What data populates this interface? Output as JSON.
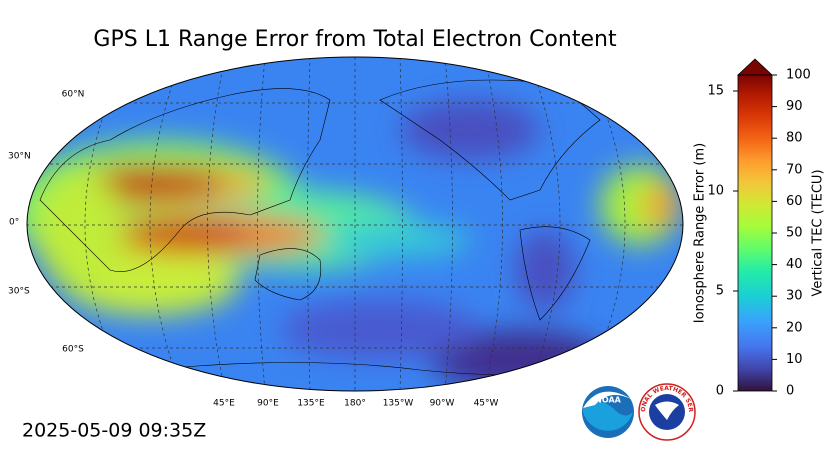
{
  "title": "GPS L1 Range Error from Total Electron Content",
  "map": {
    "lat_labels": [
      "60°N",
      "30°N",
      "0°",
      "30°S",
      "60°S"
    ],
    "lon_labels": [
      "45°E",
      "90°E",
      "135°E",
      "180°",
      "135°W",
      "90°W",
      "45°W"
    ]
  },
  "colorbar": {
    "left_label": "Ionosphere Range Error (m)",
    "right_label": "Vertical TEC (TECU)",
    "left_lim": [
      0,
      15.8
    ],
    "left_ticks": [
      0,
      5,
      10,
      15
    ],
    "right_lim": [
      0,
      100
    ],
    "right_ticks": [
      0,
      10,
      20,
      30,
      40,
      50,
      60,
      70,
      80,
      90,
      100
    ]
  },
  "timestamp": "2025-05-09 09:35Z",
  "logos": {
    "noaa": "NOAA",
    "nws": "NATIONAL WEATHER SERVICE"
  }
}
